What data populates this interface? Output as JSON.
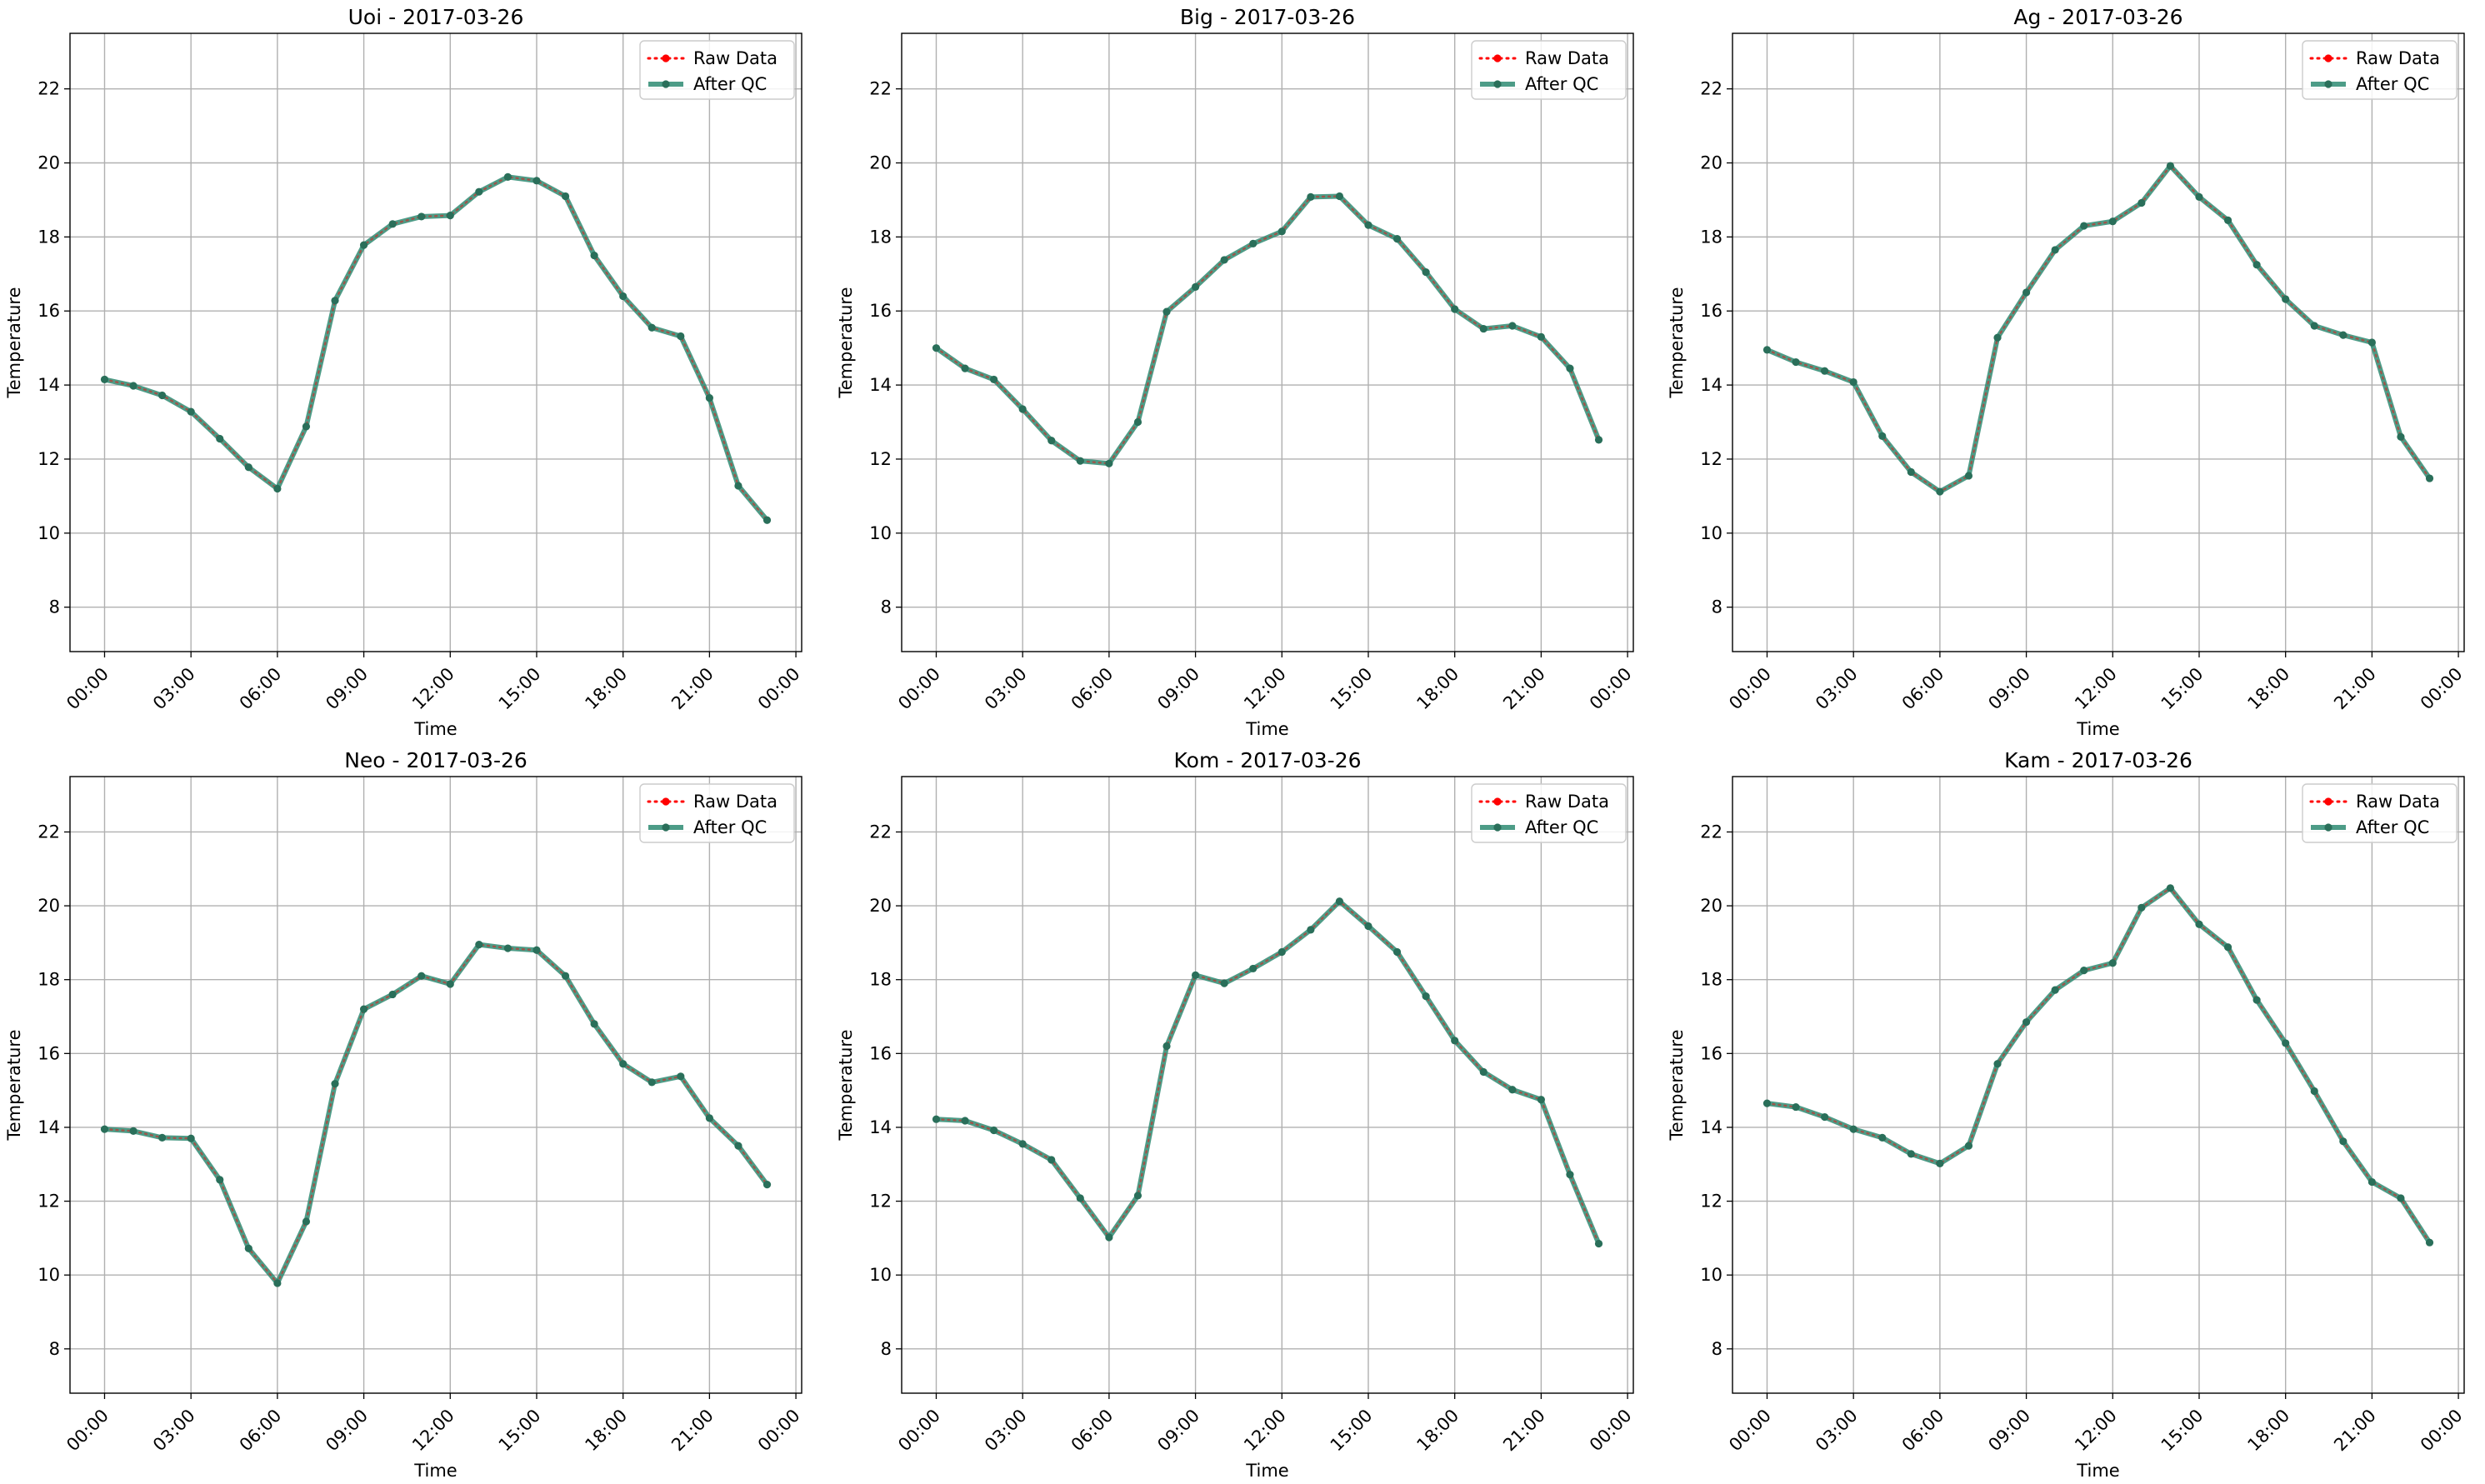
{
  "colors": {
    "raw": "#ff0000",
    "qc": "#2e8b72",
    "grid": "#b0b0b0",
    "axes": "#000000",
    "legend_border": "#cccccc"
  },
  "chart_data": [
    {
      "type": "line",
      "title": "Uoi - 2017-03-26",
      "xlabel": "Time",
      "ylabel": "Temperature",
      "x": [
        "00:00",
        "01:00",
        "02:00",
        "03:00",
        "04:00",
        "05:00",
        "06:00",
        "07:00",
        "08:00",
        "09:00",
        "10:00",
        "11:00",
        "12:00",
        "13:00",
        "14:00",
        "15:00",
        "16:00",
        "17:00",
        "18:00",
        "19:00",
        "20:00",
        "21:00",
        "22:00",
        "23:00"
      ],
      "x_ticks": [
        "00:00",
        "03:00",
        "06:00",
        "09:00",
        "12:00",
        "15:00",
        "18:00",
        "21:00",
        "00:00"
      ],
      "xlim_hours": [
        -1.2,
        24.2
      ],
      "y_ticks": [
        8,
        10,
        12,
        14,
        16,
        18,
        20,
        22
      ],
      "ylim": [
        6.8,
        23.5
      ],
      "grid": true,
      "legend_position": "top-right",
      "series": [
        {
          "name": "Raw Data",
          "style": "dotted",
          "color": "#ff0000",
          "values": [
            14.15,
            13.98,
            13.72,
            13.28,
            12.55,
            11.78,
            11.2,
            12.88,
            16.28,
            17.78,
            18.35,
            18.55,
            18.58,
            19.22,
            19.62,
            19.52,
            19.1,
            17.5,
            16.4,
            15.55,
            15.32,
            13.65,
            11.28,
            10.35
          ]
        },
        {
          "name": "After QC",
          "style": "solid",
          "color": "#2e8b72",
          "values": [
            14.15,
            13.98,
            13.72,
            13.28,
            12.55,
            11.78,
            11.2,
            12.88,
            16.28,
            17.78,
            18.35,
            18.55,
            18.58,
            19.22,
            19.62,
            19.52,
            19.1,
            17.5,
            16.4,
            15.55,
            15.32,
            13.65,
            11.28,
            10.35
          ]
        }
      ]
    },
    {
      "type": "line",
      "title": "Big - 2017-03-26",
      "xlabel": "Time",
      "ylabel": "Temperature",
      "x": [
        "00:00",
        "01:00",
        "02:00",
        "03:00",
        "04:00",
        "05:00",
        "06:00",
        "07:00",
        "08:00",
        "09:00",
        "10:00",
        "11:00",
        "12:00",
        "13:00",
        "14:00",
        "15:00",
        "16:00",
        "17:00",
        "18:00",
        "19:00",
        "20:00",
        "21:00",
        "22:00",
        "23:00"
      ],
      "x_ticks": [
        "00:00",
        "03:00",
        "06:00",
        "09:00",
        "12:00",
        "15:00",
        "18:00",
        "21:00",
        "00:00"
      ],
      "xlim_hours": [
        -1.2,
        24.2
      ],
      "y_ticks": [
        8,
        10,
        12,
        14,
        16,
        18,
        20,
        22
      ],
      "ylim": [
        6.8,
        23.5
      ],
      "grid": true,
      "legend_position": "top-right",
      "series": [
        {
          "name": "Raw Data",
          "style": "dotted",
          "color": "#ff0000",
          "values": [
            15.0,
            14.45,
            14.15,
            13.35,
            12.5,
            11.95,
            11.88,
            13.0,
            15.98,
            16.65,
            17.38,
            17.82,
            18.15,
            19.08,
            19.1,
            18.32,
            17.95,
            17.05,
            16.05,
            15.52,
            15.6,
            15.3,
            14.45,
            12.52
          ]
        },
        {
          "name": "After QC",
          "style": "solid",
          "color": "#2e8b72",
          "values": [
            15.0,
            14.45,
            14.15,
            13.35,
            12.5,
            11.95,
            11.88,
            13.0,
            15.98,
            16.65,
            17.38,
            17.82,
            18.15,
            19.08,
            19.1,
            18.32,
            17.95,
            17.05,
            16.05,
            15.52,
            15.6,
            15.3,
            14.45,
            12.52
          ]
        }
      ]
    },
    {
      "type": "line",
      "title": "Ag - 2017-03-26",
      "xlabel": "Time",
      "ylabel": "Temperature",
      "x": [
        "00:00",
        "01:00",
        "02:00",
        "03:00",
        "04:00",
        "05:00",
        "06:00",
        "07:00",
        "08:00",
        "09:00",
        "10:00",
        "11:00",
        "12:00",
        "13:00",
        "14:00",
        "15:00",
        "16:00",
        "17:00",
        "18:00",
        "19:00",
        "20:00",
        "21:00",
        "22:00",
        "23:00"
      ],
      "x_ticks": [
        "00:00",
        "03:00",
        "06:00",
        "09:00",
        "12:00",
        "15:00",
        "18:00",
        "21:00",
        "00:00"
      ],
      "xlim_hours": [
        -1.2,
        24.2
      ],
      "y_ticks": [
        8,
        10,
        12,
        14,
        16,
        18,
        20,
        22
      ],
      "ylim": [
        6.8,
        23.5
      ],
      "grid": true,
      "legend_position": "top-right",
      "series": [
        {
          "name": "Raw Data",
          "style": "dotted",
          "color": "#ff0000",
          "values": [
            14.95,
            14.62,
            14.38,
            14.08,
            12.62,
            11.65,
            11.12,
            11.55,
            15.28,
            16.5,
            17.65,
            18.3,
            18.42,
            18.92,
            19.92,
            19.08,
            18.45,
            17.25,
            16.32,
            15.6,
            15.35,
            15.15,
            12.6,
            11.48
          ]
        },
        {
          "name": "After QC",
          "style": "solid",
          "color": "#2e8b72",
          "values": [
            14.95,
            14.62,
            14.38,
            14.08,
            12.62,
            11.65,
            11.12,
            11.55,
            15.28,
            16.5,
            17.65,
            18.3,
            18.42,
            18.92,
            19.92,
            19.08,
            18.45,
            17.25,
            16.32,
            15.6,
            15.35,
            15.15,
            12.6,
            11.48
          ]
        }
      ]
    },
    {
      "type": "line",
      "title": "Neo - 2017-03-26",
      "xlabel": "Time",
      "ylabel": "Temperature",
      "x": [
        "00:00",
        "01:00",
        "02:00",
        "03:00",
        "04:00",
        "05:00",
        "06:00",
        "07:00",
        "08:00",
        "09:00",
        "10:00",
        "11:00",
        "12:00",
        "13:00",
        "14:00",
        "15:00",
        "16:00",
        "17:00",
        "18:00",
        "19:00",
        "20:00",
        "21:00",
        "22:00",
        "23:00"
      ],
      "x_ticks": [
        "00:00",
        "03:00",
        "06:00",
        "09:00",
        "12:00",
        "15:00",
        "18:00",
        "21:00",
        "00:00"
      ],
      "xlim_hours": [
        -1.2,
        24.2
      ],
      "y_ticks": [
        8,
        10,
        12,
        14,
        16,
        18,
        20,
        22
      ],
      "ylim": [
        6.8,
        23.5
      ],
      "grid": true,
      "legend_position": "top-right",
      "series": [
        {
          "name": "Raw Data",
          "style": "dotted",
          "color": "#ff0000",
          "values": [
            13.95,
            13.9,
            13.72,
            13.7,
            12.58,
            10.72,
            9.78,
            11.45,
            15.18,
            17.2,
            17.6,
            18.1,
            17.88,
            18.95,
            18.85,
            18.8,
            18.1,
            16.8,
            15.72,
            15.22,
            15.38,
            14.25,
            13.5,
            12.45
          ]
        },
        {
          "name": "After QC",
          "style": "solid",
          "color": "#2e8b72",
          "values": [
            13.95,
            13.9,
            13.72,
            13.7,
            12.58,
            10.72,
            9.78,
            11.45,
            15.18,
            17.2,
            17.6,
            18.1,
            17.88,
            18.95,
            18.85,
            18.8,
            18.1,
            16.8,
            15.72,
            15.22,
            15.38,
            14.25,
            13.5,
            12.45
          ]
        }
      ]
    },
    {
      "type": "line",
      "title": "Kom - 2017-03-26",
      "xlabel": "Time",
      "ylabel": "Temperature",
      "x": [
        "00:00",
        "01:00",
        "02:00",
        "03:00",
        "04:00",
        "05:00",
        "06:00",
        "07:00",
        "08:00",
        "09:00",
        "10:00",
        "11:00",
        "12:00",
        "13:00",
        "14:00",
        "15:00",
        "16:00",
        "17:00",
        "18:00",
        "19:00",
        "20:00",
        "21:00",
        "22:00",
        "23:00"
      ],
      "x_ticks": [
        "00:00",
        "03:00",
        "06:00",
        "09:00",
        "12:00",
        "15:00",
        "18:00",
        "21:00",
        "00:00"
      ],
      "xlim_hours": [
        -1.2,
        24.2
      ],
      "y_ticks": [
        8,
        10,
        12,
        14,
        16,
        18,
        20,
        22
      ],
      "ylim": [
        6.8,
        23.5
      ],
      "grid": true,
      "legend_position": "top-right",
      "series": [
        {
          "name": "Raw Data",
          "style": "dotted",
          "color": "#ff0000",
          "values": [
            14.22,
            14.18,
            13.92,
            13.55,
            13.12,
            12.08,
            11.02,
            12.15,
            16.2,
            18.12,
            17.9,
            18.3,
            18.75,
            19.35,
            20.12,
            19.45,
            18.75,
            17.55,
            16.35,
            15.5,
            15.02,
            14.75,
            12.72,
            10.85
          ]
        },
        {
          "name": "After QC",
          "style": "solid",
          "color": "#2e8b72",
          "values": [
            14.22,
            14.18,
            13.92,
            13.55,
            13.12,
            12.08,
            11.02,
            12.15,
            16.2,
            18.12,
            17.9,
            18.3,
            18.75,
            19.35,
            20.12,
            19.45,
            18.75,
            17.55,
            16.35,
            15.5,
            15.02,
            14.75,
            12.72,
            10.85
          ]
        }
      ]
    },
    {
      "type": "line",
      "title": "Kam - 2017-03-26",
      "xlabel": "Time",
      "ylabel": "Temperature",
      "x": [
        "00:00",
        "01:00",
        "02:00",
        "03:00",
        "04:00",
        "05:00",
        "06:00",
        "07:00",
        "08:00",
        "09:00",
        "10:00",
        "11:00",
        "12:00",
        "13:00",
        "14:00",
        "15:00",
        "16:00",
        "17:00",
        "18:00",
        "19:00",
        "20:00",
        "21:00",
        "22:00",
        "23:00"
      ],
      "x_ticks": [
        "00:00",
        "03:00",
        "06:00",
        "09:00",
        "12:00",
        "15:00",
        "18:00",
        "21:00",
        "00:00"
      ],
      "xlim_hours": [
        -1.2,
        24.2
      ],
      "y_ticks": [
        8,
        10,
        12,
        14,
        16,
        18,
        20,
        22
      ],
      "ylim": [
        6.8,
        23.5
      ],
      "grid": true,
      "legend_position": "top-right",
      "series": [
        {
          "name": "Raw Data",
          "style": "dotted",
          "color": "#ff0000",
          "values": [
            14.65,
            14.55,
            14.28,
            13.95,
            13.72,
            13.28,
            13.02,
            13.5,
            15.72,
            16.85,
            17.72,
            18.25,
            18.45,
            19.95,
            20.48,
            19.5,
            18.88,
            17.45,
            16.28,
            14.98,
            13.62,
            12.52,
            12.08,
            10.88
          ]
        },
        {
          "name": "After QC",
          "style": "solid",
          "color": "#2e8b72",
          "values": [
            14.65,
            14.55,
            14.28,
            13.95,
            13.72,
            13.28,
            13.02,
            13.5,
            15.72,
            16.85,
            17.72,
            18.25,
            18.45,
            19.95,
            20.48,
            19.5,
            18.88,
            17.45,
            16.28,
            14.98,
            13.62,
            12.52,
            12.08,
            10.88
          ]
        }
      ]
    }
  ]
}
